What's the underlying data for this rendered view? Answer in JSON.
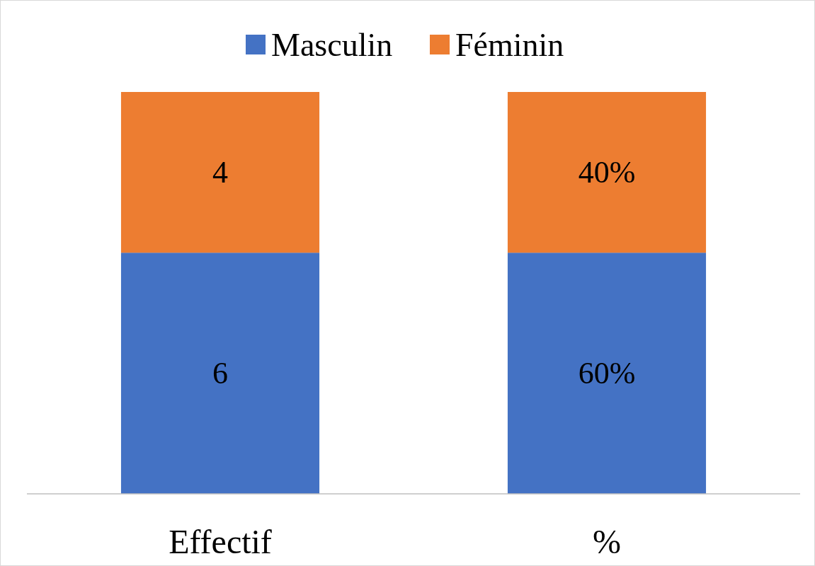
{
  "chart_data": [
    {
      "type": "bar",
      "stacked": true,
      "legend": "top right",
      "categories": [
        "Effectif"
      ],
      "series": [
        {
          "name": "Masculin",
          "color": "#4472c4",
          "values": [
            6
          ],
          "data_labels": true
        },
        {
          "name": "Féminin",
          "color": "#ed7d31",
          "values": [
            4
          ],
          "data_labels": true
        }
      ]
    },
    {
      "type": "bar",
      "stacked": true,
      "categories": [
        "%"
      ],
      "series": [
        {
          "color": "#4472c4",
          "values": [
            60
          ],
          "value_labels": [
            "60%"
          ]
        },
        {
          "color": "#ed7d31",
          "values": [
            40
          ],
          "value_labels": [
            "40%"
          ]
        }
      ]
    }
  ]
}
